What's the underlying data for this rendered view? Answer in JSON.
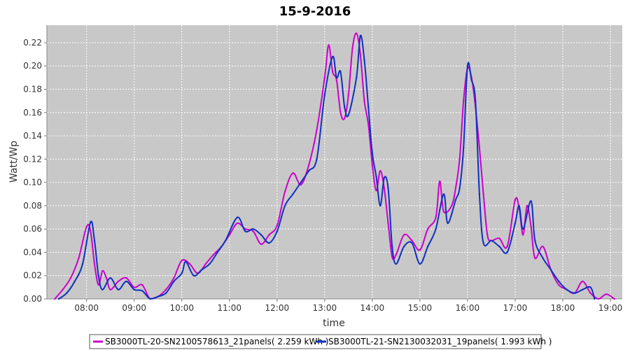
{
  "chart_data": {
    "type": "line",
    "title": "15-9-2016",
    "xlabel": "time",
    "ylabel": "Watt/Wp",
    "x_ticks": [
      "08:00",
      "09:00",
      "10:00",
      "11:00",
      "12:00",
      "13:00",
      "14:00",
      "15:00",
      "16:00",
      "17:00",
      "18:00",
      "19:00"
    ],
    "xlim": [
      "07:10",
      "19:15"
    ],
    "ylim": [
      0,
      0.235
    ],
    "y_ticks": [
      "0.00",
      "0.02",
      "0.04",
      "0.06",
      "0.08",
      "0.10",
      "0.12",
      "0.14",
      "0.16",
      "0.18",
      "0.20",
      "0.22"
    ],
    "grid": true,
    "legend_position": "bottom",
    "plot_background": "#c8c8c8",
    "series": [
      {
        "name": "SB3000TL-20-SN2100578613_21panels( 2.259 kWh )",
        "color": "#cc00cc",
        "points": [
          [
            "07:20",
            0.0
          ],
          [
            "07:30",
            0.008
          ],
          [
            "07:40",
            0.018
          ],
          [
            "07:50",
            0.035
          ],
          [
            "08:00",
            0.062
          ],
          [
            "08:05",
            0.058
          ],
          [
            "08:10",
            0.03
          ],
          [
            "08:15",
            0.012
          ],
          [
            "08:20",
            0.024
          ],
          [
            "08:25",
            0.018
          ],
          [
            "08:30",
            0.008
          ],
          [
            "08:40",
            0.015
          ],
          [
            "08:50",
            0.018
          ],
          [
            "09:00",
            0.01
          ],
          [
            "09:10",
            0.012
          ],
          [
            "09:20",
            0.0
          ],
          [
            "09:30",
            0.002
          ],
          [
            "09:40",
            0.008
          ],
          [
            "09:50",
            0.018
          ],
          [
            "10:00",
            0.033
          ],
          [
            "10:10",
            0.03
          ],
          [
            "10:20",
            0.022
          ],
          [
            "10:30",
            0.03
          ],
          [
            "10:40",
            0.038
          ],
          [
            "10:50",
            0.045
          ],
          [
            "11:00",
            0.055
          ],
          [
            "11:10",
            0.065
          ],
          [
            "11:20",
            0.06
          ],
          [
            "11:30",
            0.058
          ],
          [
            "11:40",
            0.047
          ],
          [
            "11:50",
            0.055
          ],
          [
            "12:00",
            0.063
          ],
          [
            "12:10",
            0.092
          ],
          [
            "12:20",
            0.108
          ],
          [
            "12:30",
            0.098
          ],
          [
            "12:40",
            0.115
          ],
          [
            "12:50",
            0.145
          ],
          [
            "13:00",
            0.19
          ],
          [
            "13:05",
            0.218
          ],
          [
            "13:10",
            0.195
          ],
          [
            "13:15",
            0.188
          ],
          [
            "13:20",
            0.16
          ],
          [
            "13:25",
            0.155
          ],
          [
            "13:30",
            0.175
          ],
          [
            "13:35",
            0.215
          ],
          [
            "13:40",
            0.228
          ],
          [
            "13:45",
            0.21
          ],
          [
            "13:50",
            0.17
          ],
          [
            "13:55",
            0.15
          ],
          [
            "14:00",
            0.115
          ],
          [
            "14:05",
            0.093
          ],
          [
            "14:10",
            0.11
          ],
          [
            "14:15",
            0.095
          ],
          [
            "14:20",
            0.065
          ],
          [
            "14:25",
            0.036
          ],
          [
            "14:30",
            0.038
          ],
          [
            "14:40",
            0.055
          ],
          [
            "14:50",
            0.05
          ],
          [
            "15:00",
            0.042
          ],
          [
            "15:10",
            0.06
          ],
          [
            "15:20",
            0.07
          ],
          [
            "15:25",
            0.101
          ],
          [
            "15:30",
            0.075
          ],
          [
            "15:40",
            0.08
          ],
          [
            "15:45",
            0.095
          ],
          [
            "15:50",
            0.12
          ],
          [
            "15:55",
            0.17
          ],
          [
            "16:00",
            0.198
          ],
          [
            "16:05",
            0.19
          ],
          [
            "16:10",
            0.165
          ],
          [
            "16:15",
            0.13
          ],
          [
            "16:20",
            0.09
          ],
          [
            "16:25",
            0.055
          ],
          [
            "16:30",
            0.05
          ],
          [
            "16:40",
            0.052
          ],
          [
            "16:50",
            0.045
          ],
          [
            "17:00",
            0.085
          ],
          [
            "17:05",
            0.078
          ],
          [
            "17:10",
            0.055
          ],
          [
            "17:15",
            0.08
          ],
          [
            "17:20",
            0.062
          ],
          [
            "17:25",
            0.035
          ],
          [
            "17:35",
            0.045
          ],
          [
            "17:45",
            0.025
          ],
          [
            "17:55",
            0.012
          ],
          [
            "18:05",
            0.008
          ],
          [
            "18:15",
            0.005
          ],
          [
            "18:25",
            0.015
          ],
          [
            "18:35",
            0.005
          ],
          [
            "18:45",
            0.0
          ],
          [
            "18:55",
            0.004
          ],
          [
            "19:05",
            0.0
          ]
        ]
      },
      {
        "name": "SB3000TL-21-SN2130032031_19panels( 1.993 kWh )",
        "color": "#1030c0",
        "points": [
          [
            "07:25",
            0.0
          ],
          [
            "07:35",
            0.005
          ],
          [
            "07:45",
            0.015
          ],
          [
            "07:55",
            0.03
          ],
          [
            "08:05",
            0.066
          ],
          [
            "08:10",
            0.05
          ],
          [
            "08:15",
            0.02
          ],
          [
            "08:20",
            0.008
          ],
          [
            "08:30",
            0.018
          ],
          [
            "08:40",
            0.008
          ],
          [
            "08:50",
            0.015
          ],
          [
            "09:00",
            0.008
          ],
          [
            "09:10",
            0.007
          ],
          [
            "09:20",
            0.0
          ],
          [
            "09:30",
            0.002
          ],
          [
            "09:40",
            0.005
          ],
          [
            "09:50",
            0.015
          ],
          [
            "10:00",
            0.022
          ],
          [
            "10:05",
            0.032
          ],
          [
            "10:15",
            0.02
          ],
          [
            "10:25",
            0.025
          ],
          [
            "10:35",
            0.03
          ],
          [
            "10:45",
            0.04
          ],
          [
            "10:55",
            0.05
          ],
          [
            "11:10",
            0.07
          ],
          [
            "11:20",
            0.058
          ],
          [
            "11:30",
            0.06
          ],
          [
            "11:40",
            0.055
          ],
          [
            "11:50",
            0.048
          ],
          [
            "12:00",
            0.058
          ],
          [
            "12:10",
            0.08
          ],
          [
            "12:20",
            0.09
          ],
          [
            "12:30",
            0.1
          ],
          [
            "12:40",
            0.11
          ],
          [
            "12:50",
            0.12
          ],
          [
            "13:00",
            0.175
          ],
          [
            "13:10",
            0.208
          ],
          [
            "13:15",
            0.19
          ],
          [
            "13:20",
            0.195
          ],
          [
            "13:25",
            0.165
          ],
          [
            "13:30",
            0.158
          ],
          [
            "13:40",
            0.19
          ],
          [
            "13:45",
            0.226
          ],
          [
            "13:50",
            0.205
          ],
          [
            "13:55",
            0.165
          ],
          [
            "14:00",
            0.125
          ],
          [
            "14:05",
            0.105
          ],
          [
            "14:10",
            0.08
          ],
          [
            "14:15",
            0.104
          ],
          [
            "14:20",
            0.095
          ],
          [
            "14:25",
            0.045
          ],
          [
            "14:30",
            0.03
          ],
          [
            "14:40",
            0.045
          ],
          [
            "14:50",
            0.048
          ],
          [
            "15:00",
            0.03
          ],
          [
            "15:10",
            0.045
          ],
          [
            "15:20",
            0.06
          ],
          [
            "15:30",
            0.09
          ],
          [
            "15:35",
            0.065
          ],
          [
            "15:45",
            0.085
          ],
          [
            "15:50",
            0.095
          ],
          [
            "15:55",
            0.13
          ],
          [
            "16:00",
            0.2
          ],
          [
            "16:05",
            0.188
          ],
          [
            "16:10",
            0.17
          ],
          [
            "16:15",
            0.09
          ],
          [
            "16:20",
            0.048
          ],
          [
            "16:30",
            0.05
          ],
          [
            "16:40",
            0.045
          ],
          [
            "16:50",
            0.04
          ],
          [
            "17:00",
            0.065
          ],
          [
            "17:05",
            0.08
          ],
          [
            "17:10",
            0.06
          ],
          [
            "17:20",
            0.084
          ],
          [
            "17:25",
            0.05
          ],
          [
            "17:35",
            0.035
          ],
          [
            "17:45",
            0.025
          ],
          [
            "17:55",
            0.015
          ],
          [
            "18:05",
            0.008
          ],
          [
            "18:15",
            0.005
          ],
          [
            "18:25",
            0.008
          ],
          [
            "18:35",
            0.01
          ],
          [
            "18:40",
            0.0
          ]
        ]
      }
    ]
  }
}
